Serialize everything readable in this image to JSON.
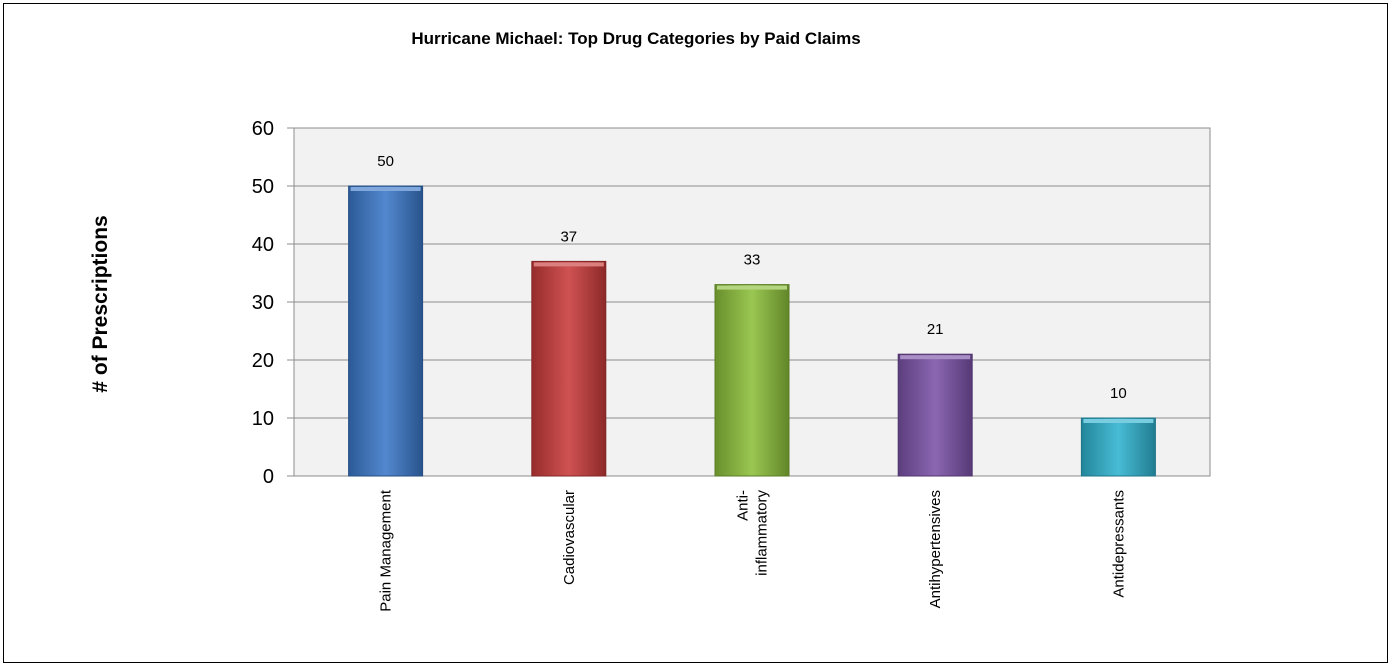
{
  "chart_data": {
    "type": "bar",
    "title": "Hurricane Michael: Top Drug Categories by Paid Claims",
    "xlabel": "",
    "ylabel": "# of Prescriptions",
    "categories": [
      "Pain Management",
      "Cadiovascular",
      "Anti-inflammatory",
      "Antihypertensives",
      "Antidepressants"
    ],
    "category_label_lines": [
      [
        "Pain Management"
      ],
      [
        "Cadiovascular"
      ],
      [
        "Anti-",
        "inflammatory"
      ],
      [
        "Antihypertensives"
      ],
      [
        "Antidepressants"
      ]
    ],
    "values": [
      50,
      37,
      33,
      21,
      10
    ],
    "data_labels": [
      "50",
      "37",
      "33",
      "21",
      "10"
    ],
    "ylim": [
      0,
      60
    ],
    "yticks": [
      0,
      10,
      20,
      30,
      40,
      50,
      60
    ],
    "grid": true,
    "legend": "none",
    "colors": [
      "#3b78c9",
      "#c93a3a",
      "#8cbf3a",
      "#7b52a8",
      "#2fb3cf"
    ],
    "plot_background": "#f2f2f2",
    "gridline_color": "#8c8c8c"
  }
}
